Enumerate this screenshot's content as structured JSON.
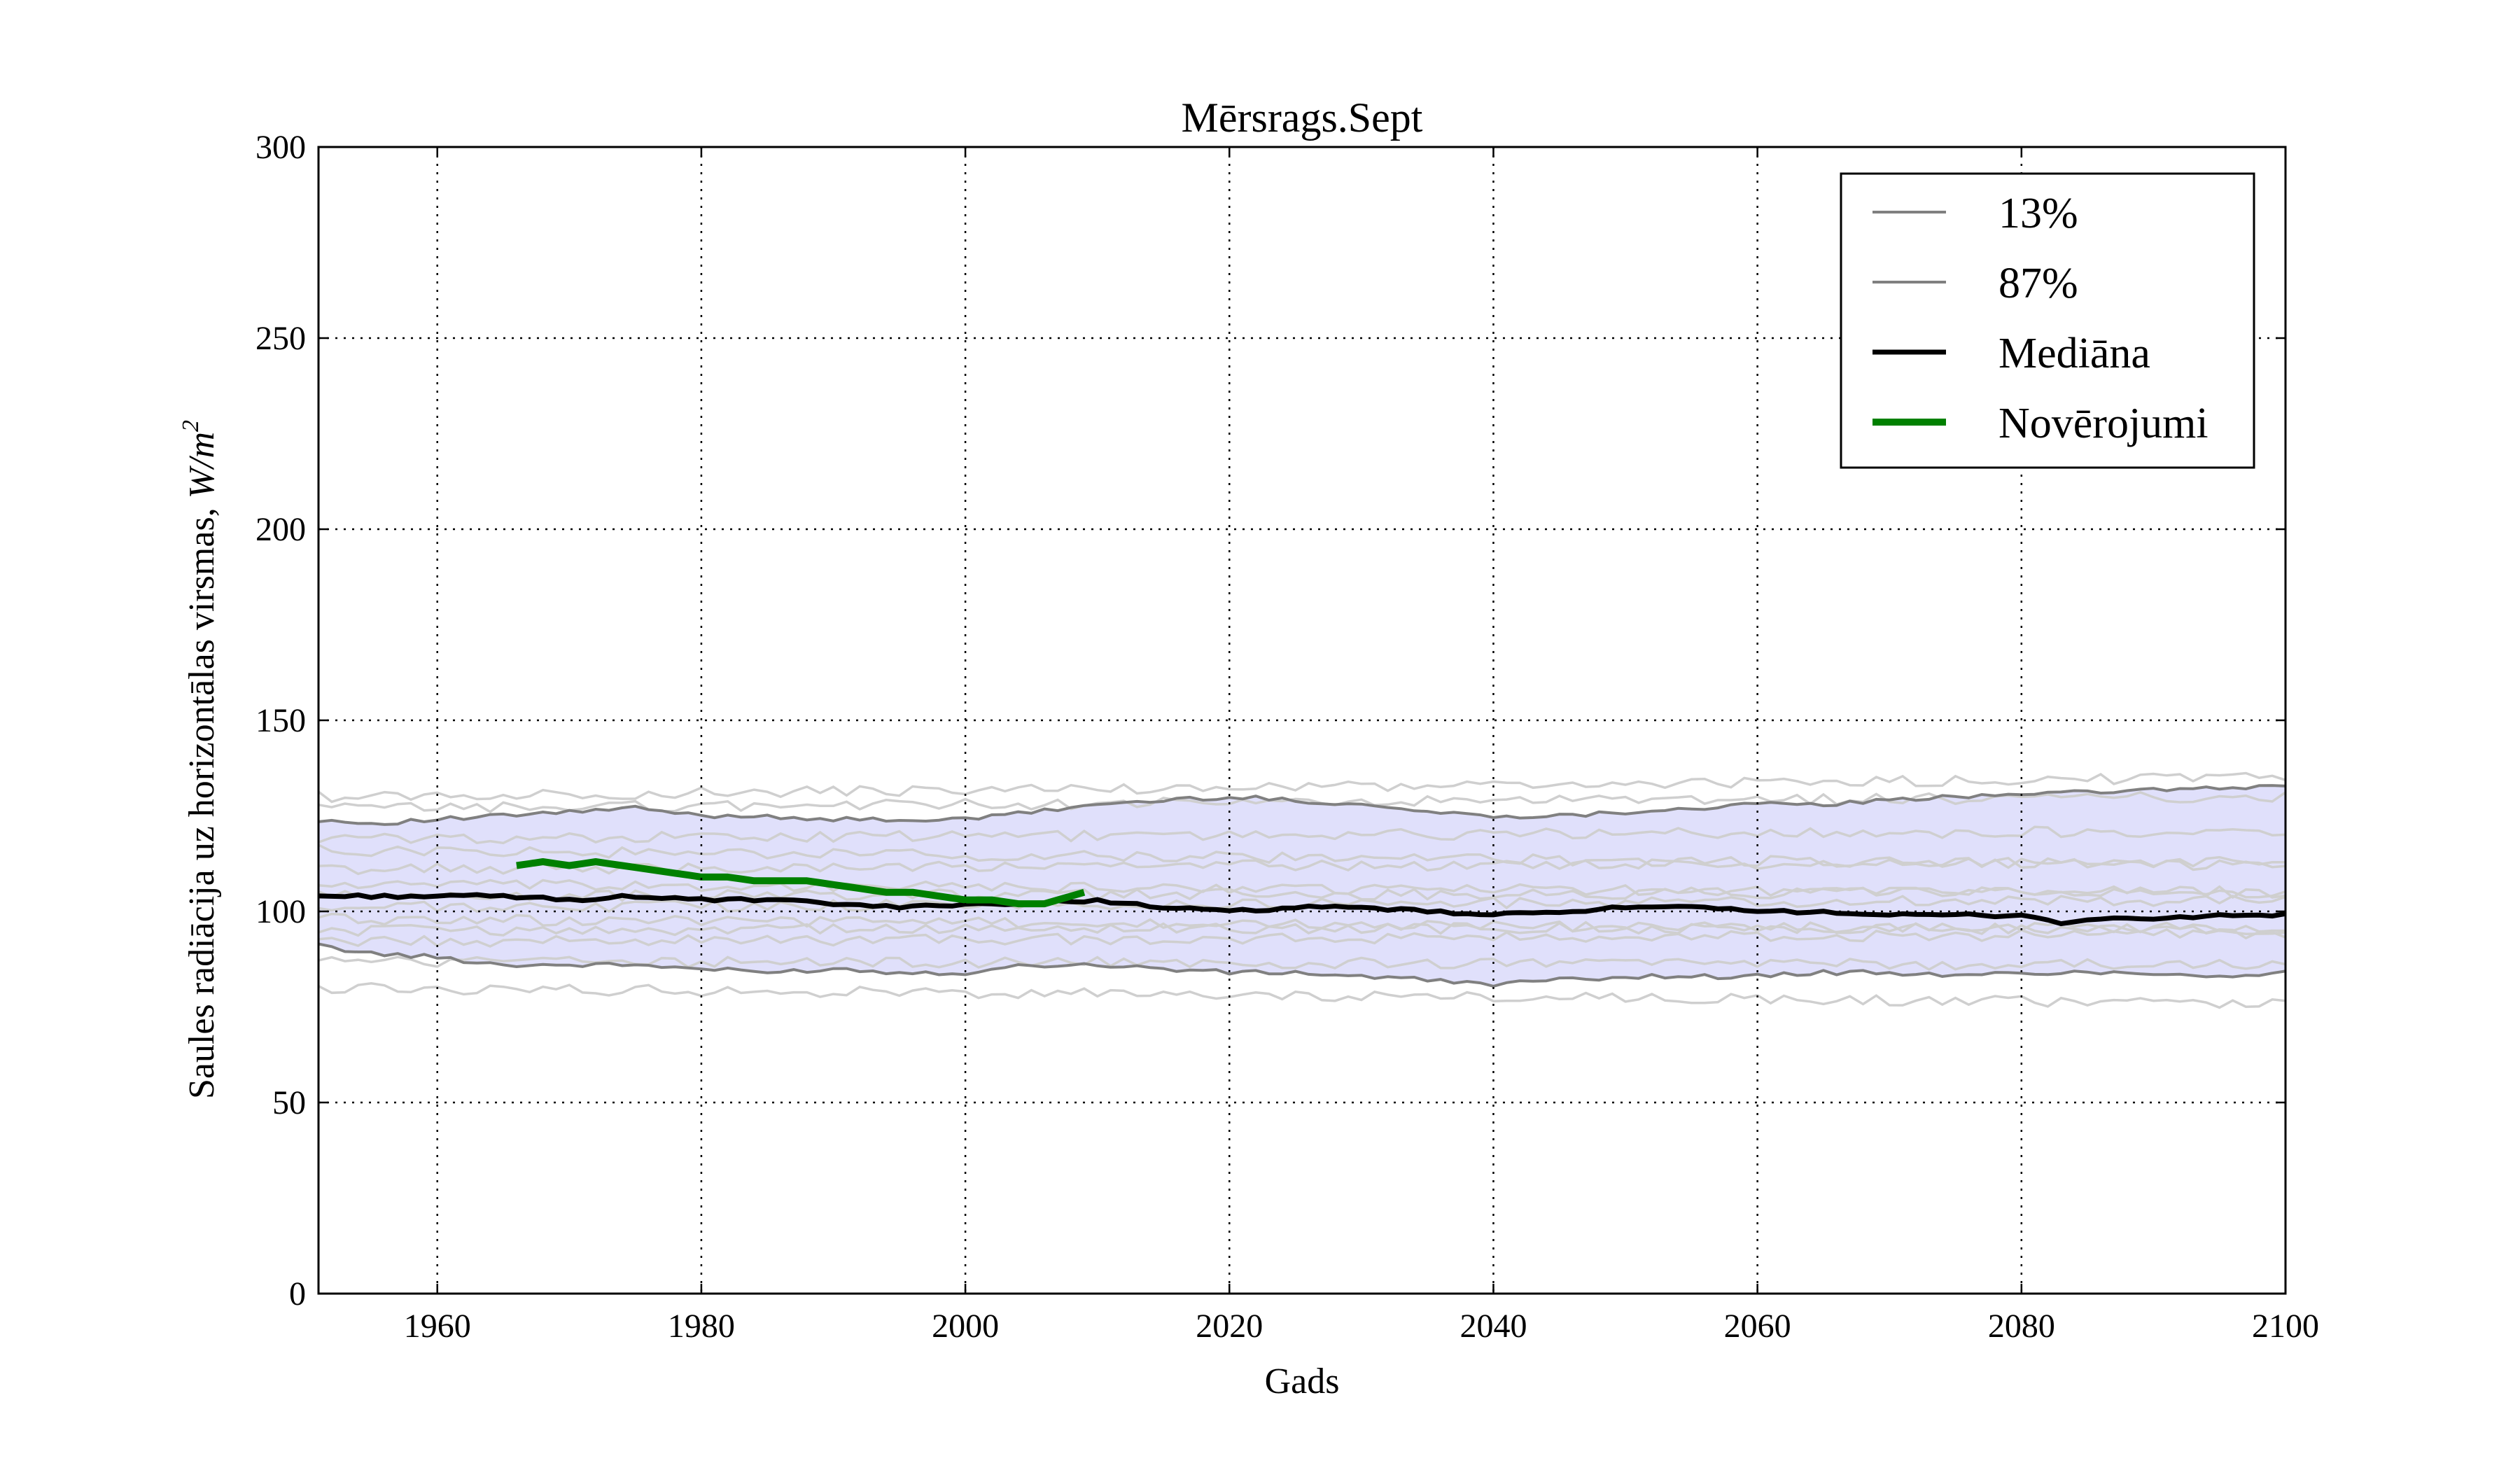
{
  "chart_data": {
    "type": "line",
    "title": "Mērsrags.Sept",
    "xlabel": "Gads",
    "ylabel": "Saules radiācija uz horizontālas virsmas, ",
    "ylabel_unit": "W/m",
    "ylabel_unit_exp": "2",
    "xlim": [
      1951,
      2100
    ],
    "ylim": [
      0,
      300
    ],
    "xticks": [
      1960,
      1980,
      2000,
      2020,
      2040,
      2060,
      2080,
      2100
    ],
    "yticks": [
      0,
      50,
      100,
      150,
      200,
      250,
      300
    ],
    "grid": true,
    "reference_line_y": 100,
    "legend_position": "top-right",
    "band_color": "#e0e0fb",
    "legend": [
      {
        "label": "13%",
        "color": "#808080",
        "style": "thin"
      },
      {
        "label": "87%",
        "color": "#808080",
        "style": "thin"
      },
      {
        "label": "Mediāna",
        "color": "#000000",
        "style": "medium"
      },
      {
        "label": "Novērojumi",
        "color": "#008000",
        "style": "thick"
      }
    ],
    "series": [
      {
        "name": "13%",
        "color": "#808080",
        "x": [
          1951,
          1955,
          1960,
          1965,
          1970,
          1975,
          1980,
          1985,
          1990,
          1995,
          2000,
          2005,
          2010,
          2015,
          2020,
          2025,
          2030,
          2035,
          2040,
          2045,
          2050,
          2055,
          2060,
          2065,
          2070,
          2075,
          2080,
          2085,
          2090,
          2095,
          2100
        ],
        "y": [
          91,
          89,
          88,
          86,
          86,
          86,
          85,
          84,
          85,
          84,
          84,
          86,
          86,
          85,
          84,
          84,
          83,
          82,
          81,
          82,
          83,
          83,
          83,
          84,
          84,
          83,
          84,
          84,
          84,
          83,
          84
        ]
      },
      {
        "name": "87%",
        "color": "#808080",
        "x": [
          1951,
          1955,
          1960,
          1965,
          1970,
          1975,
          1980,
          1985,
          1990,
          1995,
          2000,
          2005,
          2010,
          2015,
          2020,
          2025,
          2030,
          2035,
          2040,
          2045,
          2050,
          2055,
          2060,
          2065,
          2070,
          2075,
          2080,
          2085,
          2090,
          2095,
          2100
        ],
        "y": [
          124,
          123,
          124,
          125,
          126,
          127,
          125,
          125,
          124,
          124,
          124,
          126,
          128,
          129,
          130,
          129,
          128,
          126,
          125,
          125,
          126,
          127,
          128,
          128,
          129,
          130,
          131,
          131,
          132,
          132,
          133
        ]
      },
      {
        "name": "Mediāna",
        "color": "#000000",
        "x": [
          1951,
          1955,
          1960,
          1965,
          1970,
          1975,
          1980,
          1985,
          1990,
          1995,
          2000,
          2005,
          2010,
          2015,
          2020,
          2025,
          2030,
          2035,
          2040,
          2045,
          2050,
          2055,
          2060,
          2065,
          2070,
          2075,
          2080,
          2083,
          2085,
          2090,
          2095,
          2100
        ],
        "y": [
          104,
          104,
          104,
          104,
          103,
          104,
          103,
          103,
          102,
          101,
          102,
          102,
          103,
          101,
          100,
          101,
          101,
          100,
          99,
          100,
          101,
          101,
          100,
          100,
          99,
          99,
          99,
          97,
          98,
          98,
          99,
          99
        ]
      },
      {
        "name": "Novērojumi",
        "color": "#008000",
        "x": [
          1966,
          1968,
          1970,
          1972,
          1974,
          1976,
          1978,
          1980,
          1982,
          1984,
          1986,
          1988,
          1990,
          1992,
          1994,
          1996,
          1998,
          2000,
          2002,
          2004,
          2006,
          2008,
          2009
        ],
        "y": [
          112,
          113,
          112,
          113,
          112,
          111,
          110,
          109,
          109,
          108,
          108,
          108,
          107,
          106,
          105,
          105,
          104,
          103,
          103,
          102,
          102,
          104,
          105
        ]
      }
    ]
  }
}
